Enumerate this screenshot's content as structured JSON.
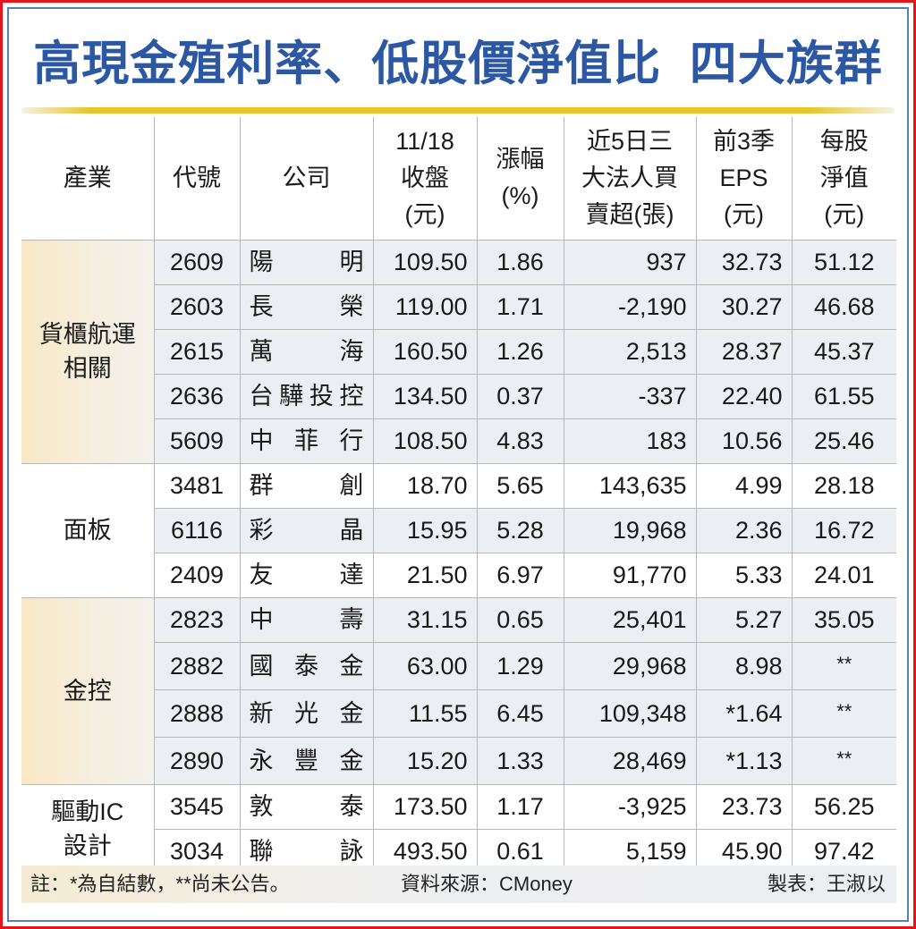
{
  "title": "高現金殖利率、低股價淨值比  四大族群",
  "colors": {
    "title": "#2c58a3",
    "outer_border": "#e8141b",
    "inner_border": "#5d7fb8",
    "gold_bar": "#e6c42a",
    "alt_row": "#ebeef2",
    "industry_beige": "#f9e8c6"
  },
  "table": {
    "headers": [
      {
        "lines": [
          "產業"
        ]
      },
      {
        "lines": [
          "代號"
        ]
      },
      {
        "lines": [
          "公司"
        ]
      },
      {
        "lines": [
          "11/18",
          "收盤",
          "(元)"
        ]
      },
      {
        "lines": [
          "漲幅",
          "(%)"
        ]
      },
      {
        "lines": [
          "近5日三",
          "大法人買",
          "賣超(張)"
        ]
      },
      {
        "lines": [
          "前3季",
          "EPS",
          "(元)"
        ]
      },
      {
        "lines": [
          "每股",
          "淨值",
          "(元)"
        ]
      }
    ],
    "groups": [
      {
        "industry": "貨櫃航運相關",
        "industry_lines": [
          "貨櫃航運",
          "相關"
        ],
        "rows": [
          {
            "code": "2609",
            "name_chars": [
              "陽",
              "明"
            ],
            "close": "109.50",
            "change_pct": "1.86",
            "inst_net": "937",
            "eps": "32.73",
            "nav": "51.12"
          },
          {
            "code": "2603",
            "name_chars": [
              "長",
              "榮"
            ],
            "close": "119.00",
            "change_pct": "1.71",
            "inst_net": "-2,190",
            "eps": "30.27",
            "nav": "46.68"
          },
          {
            "code": "2615",
            "name_chars": [
              "萬",
              "海"
            ],
            "close": "160.50",
            "change_pct": "1.26",
            "inst_net": "2,513",
            "eps": "28.37",
            "nav": "45.37"
          },
          {
            "code": "2636",
            "name_chars": [
              "台",
              "驊",
              "投",
              "控"
            ],
            "close": "134.50",
            "change_pct": "0.37",
            "inst_net": "-337",
            "eps": "22.40",
            "nav": "61.55"
          },
          {
            "code": "5609",
            "name_chars": [
              "中",
              "菲",
              "行"
            ],
            "close": "108.50",
            "change_pct": "4.83",
            "inst_net": "183",
            "eps": "10.56",
            "nav": "25.46"
          }
        ]
      },
      {
        "industry": "面板",
        "industry_lines": [
          "面板"
        ],
        "rows": [
          {
            "code": "3481",
            "name_chars": [
              "群",
              "創"
            ],
            "close": "18.70",
            "change_pct": "5.65",
            "inst_net": "143,635",
            "eps": "4.99",
            "nav": "28.18"
          },
          {
            "code": "6116",
            "name_chars": [
              "彩",
              "晶"
            ],
            "close": "15.95",
            "change_pct": "5.28",
            "inst_net": "19,968",
            "eps": "2.36",
            "nav": "16.72"
          },
          {
            "code": "2409",
            "name_chars": [
              "友",
              "達"
            ],
            "close": "21.50",
            "change_pct": "6.97",
            "inst_net": "91,770",
            "eps": "5.33",
            "nav": "24.01"
          }
        ]
      },
      {
        "industry": "金控",
        "industry_lines": [
          "金控"
        ],
        "rows": [
          {
            "code": "2823",
            "name_chars": [
              "中",
              "壽"
            ],
            "close": "31.15",
            "change_pct": "0.65",
            "inst_net": "25,401",
            "eps": "5.27",
            "nav": "35.05"
          },
          {
            "code": "2882",
            "name_chars": [
              "國",
              "泰",
              "金"
            ],
            "close": "63.00",
            "change_pct": "1.29",
            "inst_net": "29,968",
            "eps": "8.98",
            "nav": "**"
          },
          {
            "code": "2888",
            "name_chars": [
              "新",
              "光",
              "金"
            ],
            "close": "11.55",
            "change_pct": "6.45",
            "inst_net": "109,348",
            "eps": "*1.64",
            "nav": "**"
          },
          {
            "code": "2890",
            "name_chars": [
              "永",
              "豐",
              "金"
            ],
            "close": "15.20",
            "change_pct": "1.33",
            "inst_net": "28,469",
            "eps": "*1.13",
            "nav": "**"
          }
        ]
      },
      {
        "industry": "驅動IC設計",
        "industry_lines": [
          "驅動IC",
          "設計"
        ],
        "rows": [
          {
            "code": "3545",
            "name_chars": [
              "敦",
              "泰"
            ],
            "close": "173.50",
            "change_pct": "1.17",
            "inst_net": "-3,925",
            "eps": "23.73",
            "nav": "56.25"
          },
          {
            "code": "3034",
            "name_chars": [
              "聯",
              "詠"
            ],
            "close": "493.50",
            "change_pct": "0.61",
            "inst_net": "5,159",
            "eps": "45.90",
            "nav": "97.42"
          }
        ]
      }
    ]
  },
  "footer": {
    "note": "註：*為自結數，**尚未公告。",
    "source": "資料來源：CMoney",
    "credit": "製表：王淑以"
  }
}
